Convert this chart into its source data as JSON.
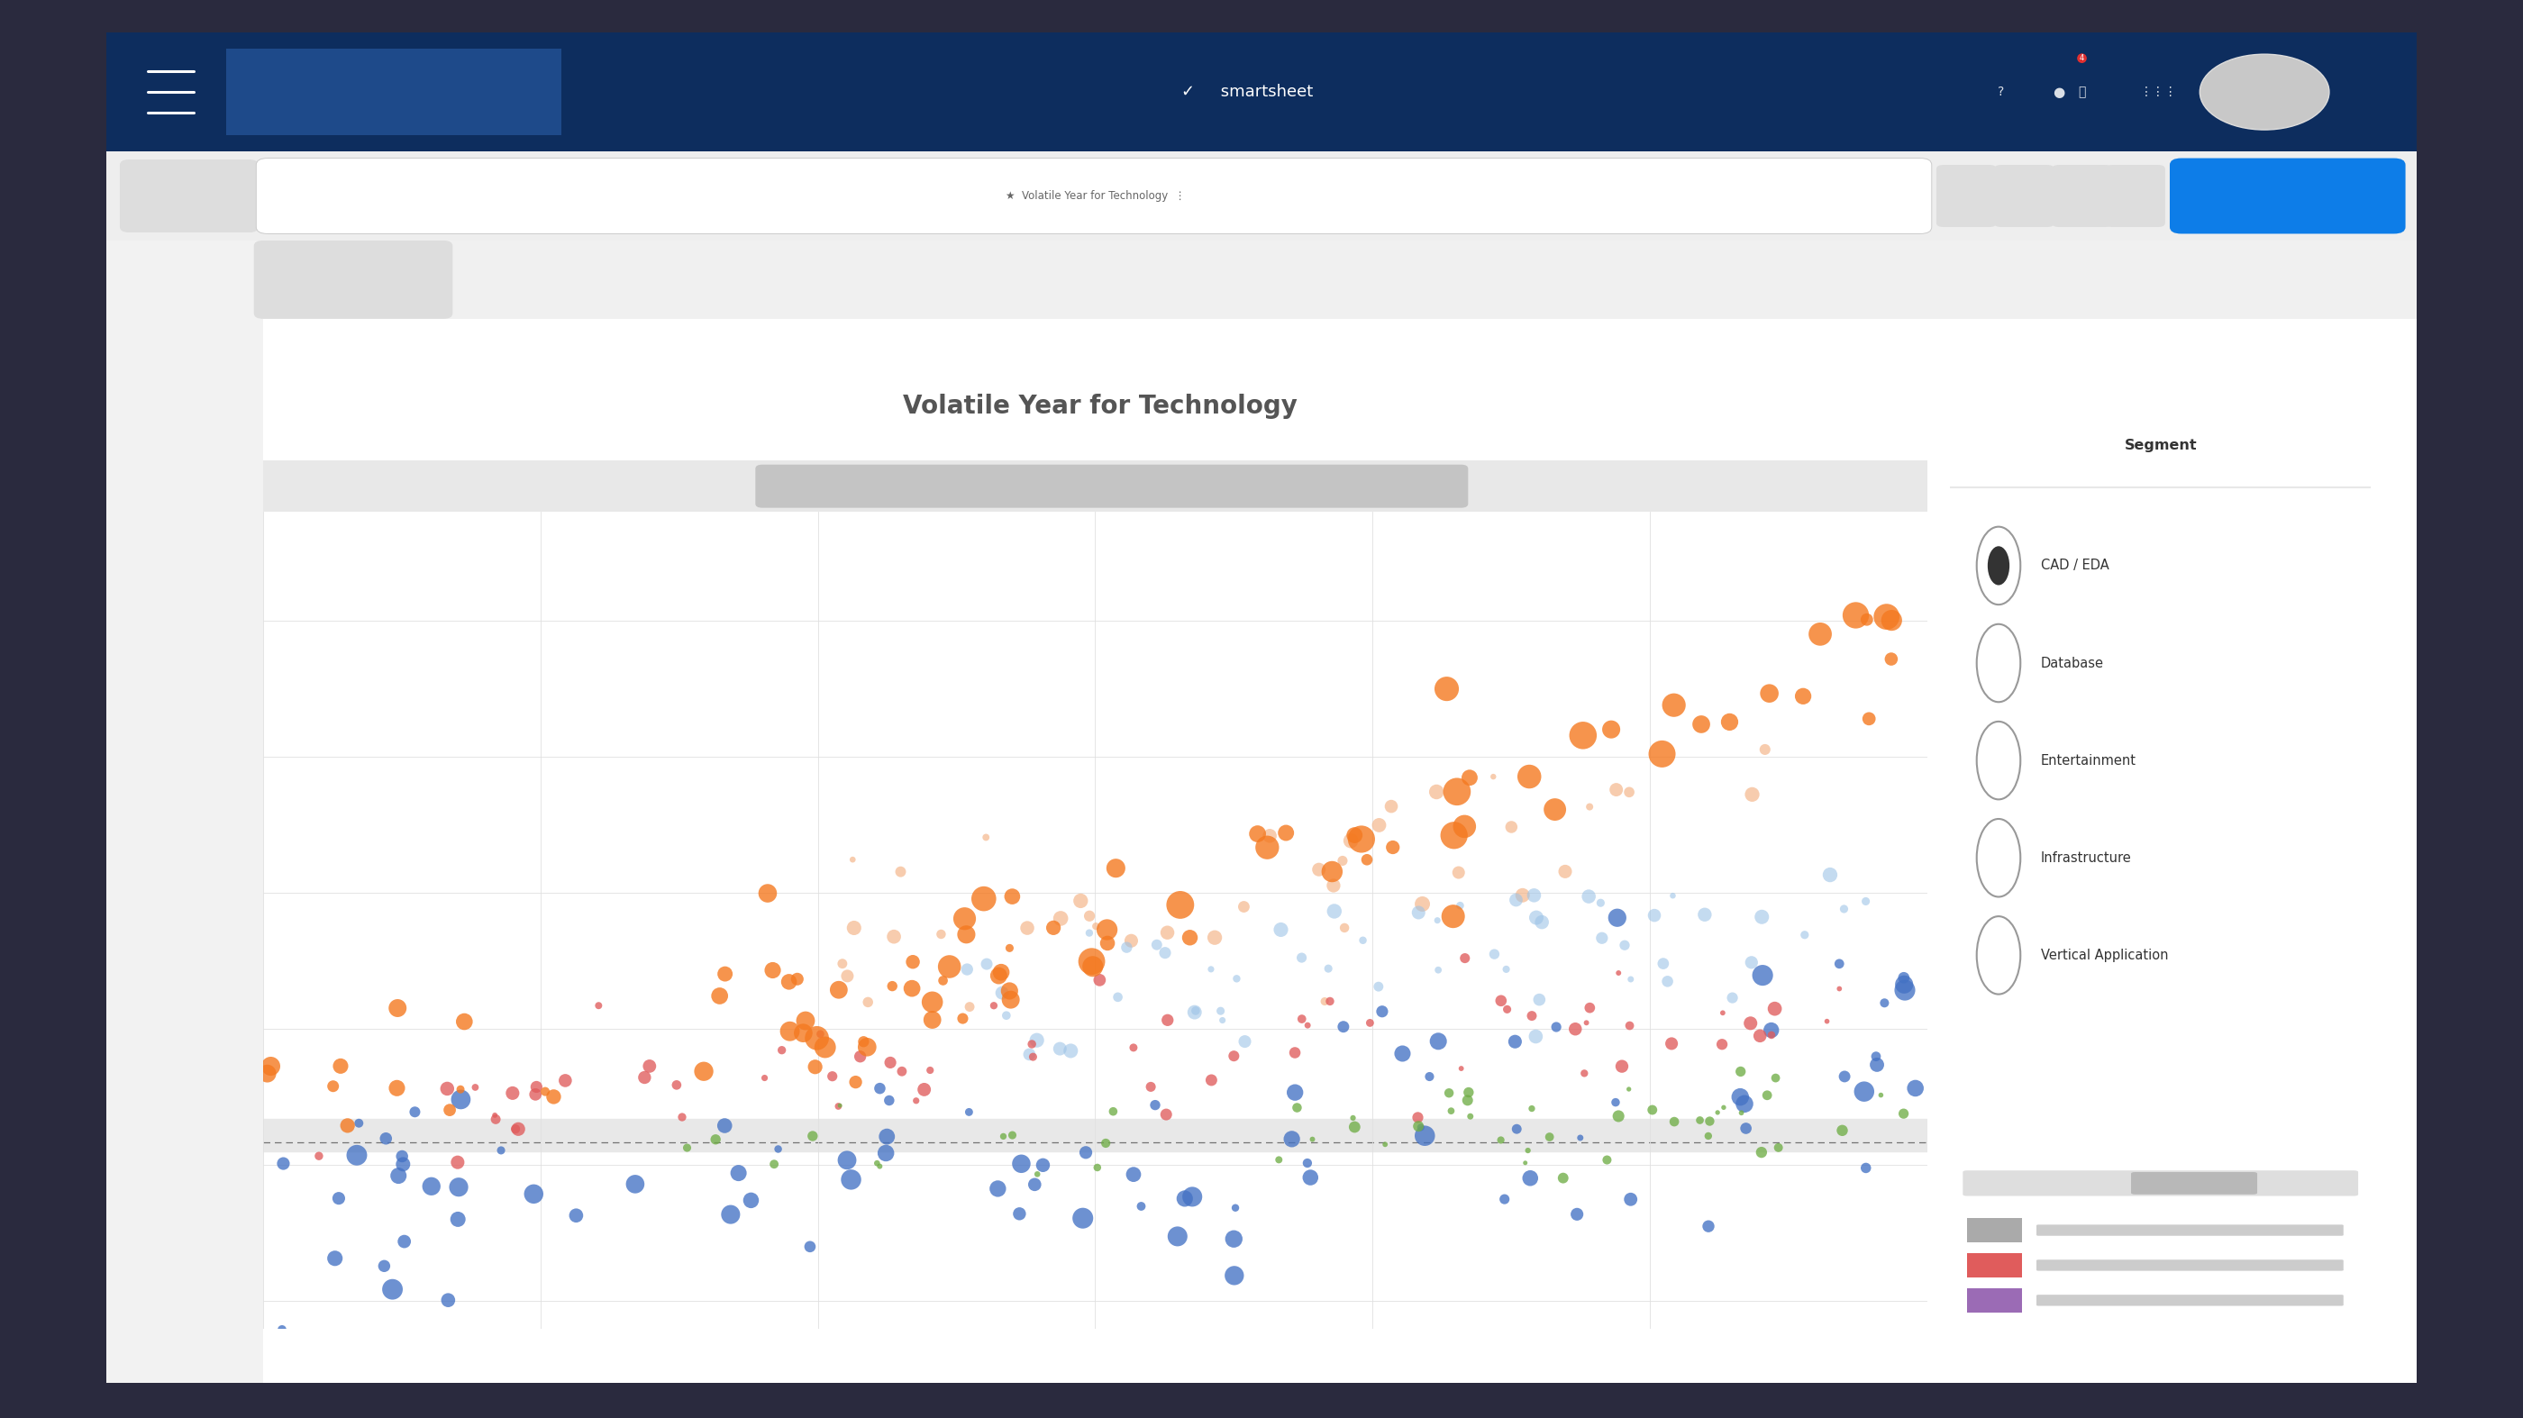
{
  "title": "Volatile Year for Technology",
  "nav_bar_color": "#0d2d5e",
  "tab_bar_color": "#efefef",
  "content_bg": "#f5f5f5",
  "chart_bg": "#ffffff",
  "title_color": "#555555",
  "title_fontsize": 20,
  "menu_highlight_color": "#1e4a8a",
  "tab_highlight_color": "#0d7de8",
  "segment_title": "Segment",
  "segment_options": [
    "CAD / EDA",
    "Database",
    "Entertainment",
    "Infrastructure",
    "Vertical Application"
  ],
  "segment_selected": 0,
  "orange": "#f47920",
  "blue": "#4472c4",
  "red": "#e05c5c",
  "green": "#70ad47",
  "light_blue": "#9dc3e6",
  "light_orange": "#f4b183",
  "grid_color": "#e0e0e0",
  "band_color": "#ebebeb",
  "legend_items": [
    {
      "color": "#aaaaaa"
    },
    {
      "color": "#e05c5c"
    },
    {
      "color": "#9b6bb5"
    }
  ],
  "outer_bg": "#2a2a3e",
  "browser_shadow": "#888888"
}
